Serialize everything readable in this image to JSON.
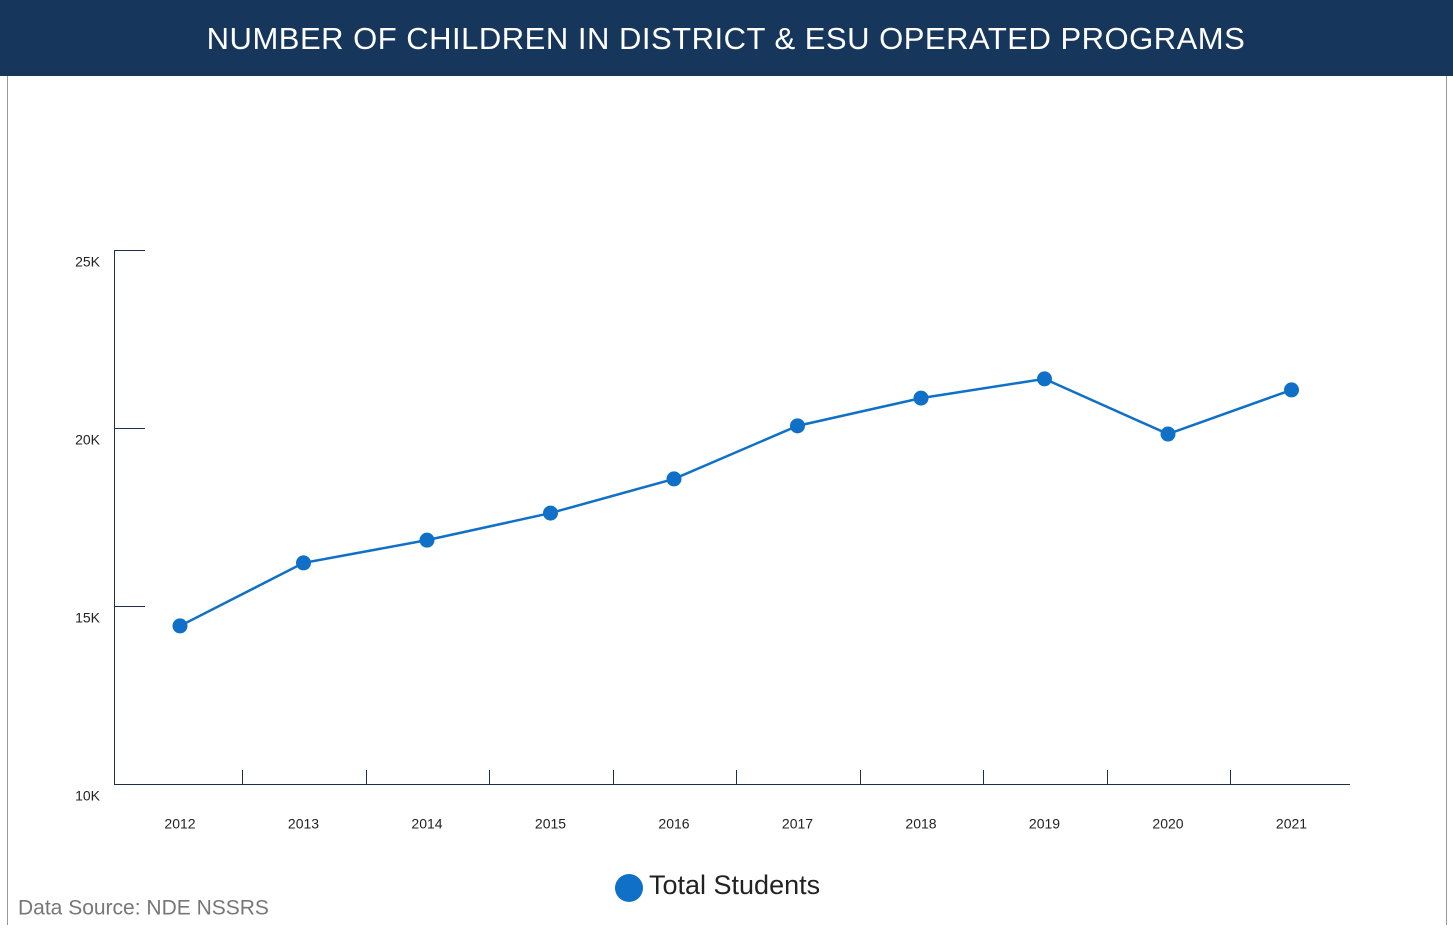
{
  "chart_data": {
    "type": "line",
    "title": "NUMBER OF CHILDREN IN DISTRICT & ESU OPERATED PROGRAMS",
    "categories": [
      "2012",
      "2013",
      "2014",
      "2015",
      "2016",
      "2017",
      "2018",
      "2019",
      "2020",
      "2021"
    ],
    "series": [
      {
        "name": "Total Students",
        "color": "#1070c8",
        "values": [
          14440,
          16210,
          16850,
          17610,
          18570,
          20060,
          20840,
          21380,
          19830,
          21070
        ]
      }
    ],
    "ylim": [
      10000,
      25000
    ],
    "yticks": [
      {
        "value": 10000,
        "label": "10K"
      },
      {
        "value": 15000,
        "label": "15K"
      },
      {
        "value": 20000,
        "label": "20K"
      },
      {
        "value": 25000,
        "label": "25K"
      }
    ],
    "grid": false,
    "source": "Data Source: NDE NSSRS"
  }
}
